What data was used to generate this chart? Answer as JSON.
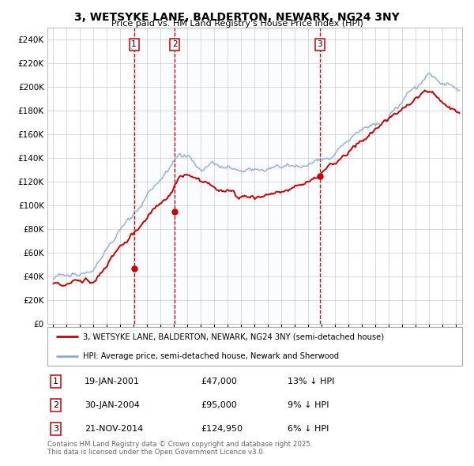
{
  "title": "3, WETSYKE LANE, BALDERTON, NEWARK, NG24 3NY",
  "subtitle": "Price paid vs. HM Land Registry's House Price Index (HPI)",
  "property_label": "3, WETSYKE LANE, BALDERTON, NEWARK, NG24 3NY (semi-detached house)",
  "hpi_label": "HPI: Average price, semi-detached house, Newark and Sherwood",
  "transactions": [
    {
      "num": 1,
      "date": "19-JAN-2001",
      "price": 47000,
      "year": 2001.05,
      "hpi_pct": "13% ↓ HPI"
    },
    {
      "num": 2,
      "date": "30-JAN-2004",
      "price": 95000,
      "year": 2004.08,
      "hpi_pct": "9% ↓ HPI"
    },
    {
      "num": 3,
      "date": "21-NOV-2014",
      "price": 124950,
      "year": 2014.9,
      "hpi_pct": "6% ↓ HPI"
    }
  ],
  "copyright_text": "Contains HM Land Registry data © Crown copyright and database right 2025.\nThis data is licensed under the Open Government Licence v3.0.",
  "ylim": [
    0,
    250000
  ],
  "yticks": [
    0,
    20000,
    40000,
    60000,
    80000,
    100000,
    120000,
    140000,
    160000,
    180000,
    200000,
    220000,
    240000
  ],
  "property_color": "#cc0000",
  "hpi_color": "#88aadd",
  "vline_color": "#cc0000",
  "shade_color": "#ddeeff",
  "background_color": "#ffffff",
  "grid_color": "#cccccc",
  "xlim_start": 1994.6,
  "xlim_end": 2025.5
}
